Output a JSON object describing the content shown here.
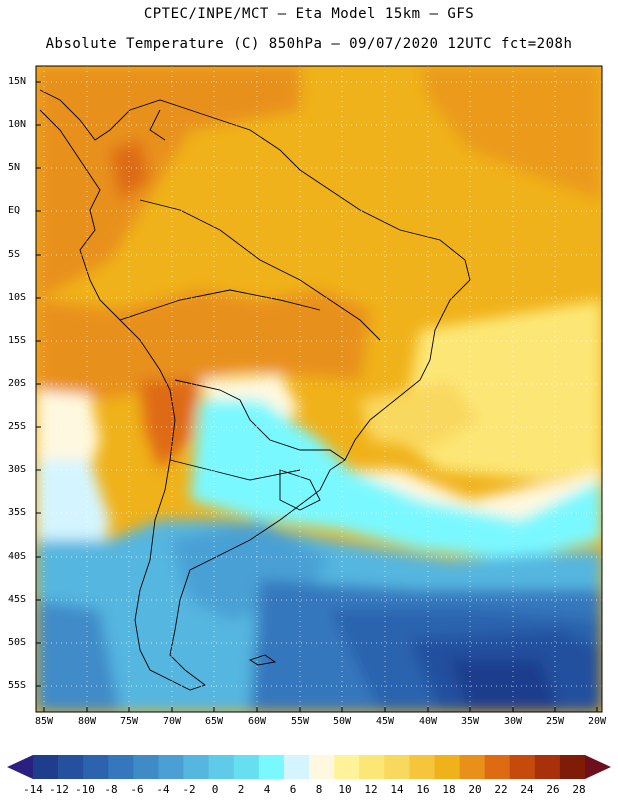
{
  "header": {
    "line1": "CPTEC/INPE/MCT –  Eta Model 15km – GFS",
    "line2": "Absolute Temperature (C) 850hPa – 09/07/2020 12UTC fct=208h"
  },
  "map": {
    "lat_labels": [
      "15N",
      "10N",
      "5N",
      "EQ",
      "5S",
      "10S",
      "15S",
      "20S",
      "25S",
      "30S",
      "35S",
      "40S",
      "45S",
      "50S",
      "55S"
    ],
    "lon_labels": [
      "85W",
      "80W",
      "75W",
      "70W",
      "65W",
      "60W",
      "55W",
      "50W",
      "45W",
      "40W",
      "35W",
      "30W",
      "25W",
      "20W"
    ]
  },
  "colorbar": {
    "labels": [
      "-14",
      "-12",
      "-10",
      "-8",
      "-6",
      "-4",
      "-2",
      "0",
      "2",
      "4",
      "6",
      "8",
      "10",
      "12",
      "14",
      "16",
      "18",
      "20",
      "22",
      "24",
      "26",
      "28"
    ],
    "colors": [
      "#1e3d8c",
      "#24509e",
      "#2b63ae",
      "#3577bd",
      "#3f8bc8",
      "#4aa0d4",
      "#55b6e0",
      "#5fcbe8",
      "#66e0f0",
      "#7af8ff",
      "#d4f5ff",
      "#fff8e0",
      "#fff399",
      "#fce776",
      "#f9d85e",
      "#f5c53c",
      "#f0b21a",
      "#e8901a",
      "#de6a12",
      "#c64a0c",
      "#a8300a",
      "#7e1c08"
    ],
    "low_arrow_color": "#2a2080",
    "high_arrow_color": "#6e0f1e"
  }
}
